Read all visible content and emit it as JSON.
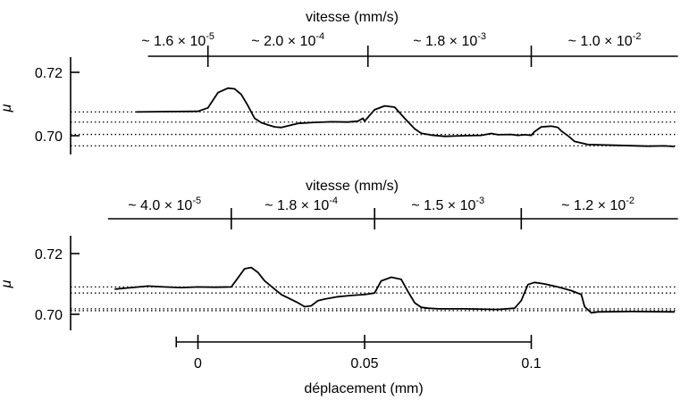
{
  "chart_data": [
    {
      "type": "line",
      "ylabel": "μ",
      "ylim": [
        0.6945,
        0.7265
      ],
      "xlim": [
        -0.029,
        0.144
      ],
      "yticks": [
        {
          "value": 0.72,
          "label": "0.72"
        },
        {
          "value": 0.7,
          "label": "0.70"
        }
      ],
      "speed_axis": {
        "title": "vitesse (mm/s)",
        "range": [
          -0.015,
          0.144
        ],
        "dividers": [
          0.003,
          0.051,
          0.1
        ],
        "segments": [
          {
            "label": "~ 1.6 × 10",
            "exp": "-5",
            "x_center": -0.006
          },
          {
            "label": "~ 2.0 × 10",
            "exp": "-4",
            "x_center": 0.027
          },
          {
            "label": "~ 1.8 × 10",
            "exp": "-3",
            "x_center": 0.0755
          },
          {
            "label": "~ 1.0 × 10",
            "exp": "-2",
            "x_center": 0.122
          }
        ]
      },
      "reference_levels": [
        0.7075,
        0.7043,
        0.7004,
        0.6968
      ],
      "series": [
        {
          "x": [
            -0.0185,
            -0.01,
            0,
            0.003,
            0.006,
            0.009,
            0.011,
            0.013,
            0.015,
            0.017,
            0.019,
            0.021,
            0.023,
            0.025,
            0.03,
            0.035,
            0.04,
            0.045,
            0.048,
            0.0495,
            0.05,
            0.053,
            0.056,
            0.059,
            0.062,
            0.065,
            0.067,
            0.07,
            0.074,
            0.08,
            0.085,
            0.088,
            0.09,
            0.094,
            0.096,
            0.098,
            0.1,
            0.101,
            0.103,
            0.106,
            0.108,
            0.109,
            0.111,
            0.113,
            0.117,
            0.125,
            0.135,
            0.14,
            0.143
          ],
          "y": [
            0.7075,
            0.7076,
            0.7077,
            0.7088,
            0.7136,
            0.715,
            0.7148,
            0.713,
            0.7095,
            0.7055,
            0.7041,
            0.7034,
            0.7028,
            0.7026,
            0.7039,
            0.7042,
            0.7044,
            0.7043,
            0.7046,
            0.7055,
            0.7046,
            0.7082,
            0.7094,
            0.709,
            0.7055,
            0.7022,
            0.7008,
            0.7002,
            0.6998,
            0.7,
            0.7001,
            0.7007,
            0.7003,
            0.7004,
            0.7001,
            0.7003,
            0.7001,
            0.7013,
            0.7028,
            0.703,
            0.7026,
            0.7015,
            0.7,
            0.6982,
            0.6972,
            0.697,
            0.6967,
            0.6968,
            0.6966
          ]
        }
      ]
    },
    {
      "type": "line",
      "ylabel": "μ",
      "ylim": [
        0.6945,
        0.7265
      ],
      "xlim": [
        -0.029,
        0.144
      ],
      "yticks": [
        {
          "value": 0.72,
          "label": "0.72"
        },
        {
          "value": 0.7,
          "label": "0.70"
        }
      ],
      "speed_axis": {
        "title": "vitesse (mm/s)",
        "range": [
          -0.027,
          0.144
        ],
        "dividers": [
          0.01,
          0.053,
          0.097
        ],
        "segments": [
          {
            "label": "~ 4.0 × 10",
            "exp": "-5",
            "x_center": -0.01
          },
          {
            "label": "~ 1.8 × 10",
            "exp": "-4",
            "x_center": 0.031
          },
          {
            "label": "~ 1.5 × 10",
            "exp": "-3",
            "x_center": 0.075
          },
          {
            "label": "~ 1.2 × 10",
            "exp": "-2",
            "x_center": 0.12
          }
        ]
      },
      "reference_levels": [
        0.709,
        0.707,
        0.7018,
        0.7012
      ],
      "series": [
        {
          "x": [
            -0.025,
            -0.02,
            -0.015,
            -0.01,
            -0.005,
            0,
            0.005,
            0.01,
            0.012,
            0.014,
            0.016,
            0.018,
            0.02,
            0.025,
            0.03,
            0.032,
            0.034,
            0.036,
            0.038,
            0.042,
            0.046,
            0.05,
            0.053,
            0.055,
            0.058,
            0.061,
            0.063,
            0.065,
            0.067,
            0.069,
            0.072,
            0.08,
            0.09,
            0.095,
            0.097,
            0.099,
            0.101,
            0.104,
            0.108,
            0.112,
            0.115,
            0.116,
            0.118,
            0.12,
            0.13,
            0.143
          ],
          "y": [
            0.7083,
            0.7088,
            0.7093,
            0.709,
            0.7088,
            0.709,
            0.7089,
            0.709,
            0.712,
            0.715,
            0.7154,
            0.7138,
            0.711,
            0.7065,
            0.7038,
            0.7025,
            0.7028,
            0.7045,
            0.705,
            0.7058,
            0.7062,
            0.7065,
            0.707,
            0.711,
            0.7122,
            0.7115,
            0.7075,
            0.7038,
            0.7023,
            0.702,
            0.7018,
            0.7018,
            0.7016,
            0.702,
            0.7045,
            0.7098,
            0.7105,
            0.71,
            0.709,
            0.7078,
            0.7065,
            0.7025,
            0.7005,
            0.7008,
            0.7009,
            0.7008
          ]
        }
      ]
    }
  ],
  "xaxis": {
    "label": "déplacement (mm)",
    "ticks": [
      {
        "value": 0,
        "label": "0"
      },
      {
        "value": 0.05,
        "label": "0.05"
      },
      {
        "value": 0.1,
        "label": "0.1"
      }
    ],
    "range": [
      -0.0065,
      0.1
    ]
  }
}
